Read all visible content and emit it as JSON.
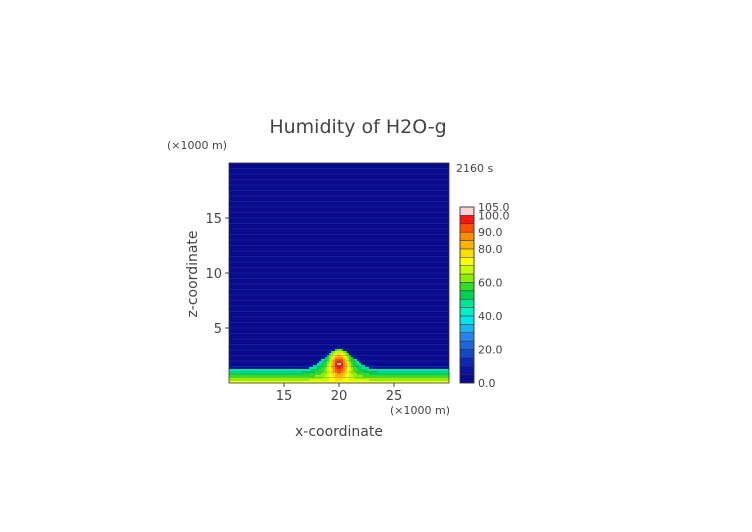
{
  "chart_data": {
    "type": "heatmap",
    "title": "Humidity of H2O-g",
    "time_label": "2160 s",
    "xlabel": "x-coordinate",
    "ylabel": "z-coordinate",
    "x_unit": "(×1000 m)",
    "y_unit": "(×1000 m)",
    "xlim": [
      10,
      30
    ],
    "ylim": [
      0,
      20
    ],
    "x_ticks": [
      15,
      20,
      25
    ],
    "y_ticks": [
      5,
      10,
      15
    ],
    "colorbar": {
      "levels": [
        0,
        5,
        10,
        15,
        20,
        25,
        30,
        35,
        40,
        45,
        50,
        55,
        60,
        65,
        70,
        75,
        80,
        85,
        90,
        95,
        100,
        105
      ],
      "colors": [
        "#0a0a8c",
        "#0a14a0",
        "#0a28b4",
        "#1446c8",
        "#1e64dc",
        "#2882f0",
        "#14b4f0",
        "#00e6e6",
        "#00f0c8",
        "#00e696",
        "#00d250",
        "#32dc28",
        "#8cf000",
        "#c8ff00",
        "#ffff00",
        "#ffdc00",
        "#ffb400",
        "#ff8c00",
        "#ff5000",
        "#ff1414",
        "#ffd2d2"
      ],
      "tick_labels": [
        "105.0",
        "100.0",
        "90.0",
        "80.0",
        "60.0",
        "40.0",
        "20.0",
        "0.0"
      ],
      "tick_values": [
        105,
        100,
        90,
        80,
        60,
        40,
        20,
        0
      ]
    }
  }
}
